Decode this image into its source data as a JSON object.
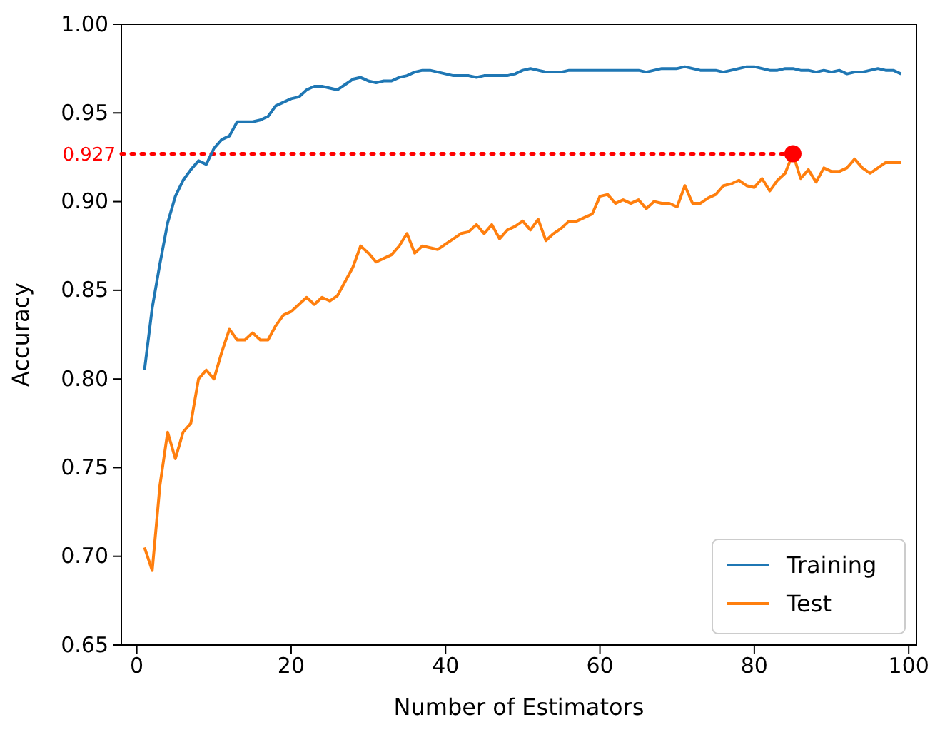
{
  "chart_data": {
    "type": "line",
    "xlabel": "Number of Estimators",
    "ylabel": "Accuracy",
    "x": [
      1,
      2,
      3,
      4,
      5,
      6,
      7,
      8,
      9,
      10,
      11,
      12,
      13,
      14,
      15,
      16,
      17,
      18,
      19,
      20,
      21,
      22,
      23,
      24,
      25,
      26,
      27,
      28,
      29,
      30,
      31,
      32,
      33,
      34,
      35,
      36,
      37,
      38,
      39,
      40,
      41,
      42,
      43,
      44,
      45,
      46,
      47,
      48,
      49,
      50,
      51,
      52,
      53,
      54,
      55,
      56,
      57,
      58,
      59,
      60,
      61,
      62,
      63,
      64,
      65,
      66,
      67,
      68,
      69,
      70,
      71,
      72,
      73,
      74,
      75,
      76,
      77,
      78,
      79,
      80,
      81,
      82,
      83,
      84,
      85,
      86,
      87,
      88,
      89,
      90,
      91,
      92,
      93,
      94,
      95,
      96,
      97,
      98,
      99
    ],
    "series": [
      {
        "name": "Training",
        "color": "#1f77b4",
        "values": [
          0.805,
          0.84,
          0.865,
          0.888,
          0.903,
          0.912,
          0.918,
          0.923,
          0.921,
          0.93,
          0.935,
          0.937,
          0.945,
          0.945,
          0.945,
          0.946,
          0.948,
          0.954,
          0.956,
          0.958,
          0.959,
          0.963,
          0.965,
          0.965,
          0.964,
          0.963,
          0.966,
          0.969,
          0.97,
          0.968,
          0.967,
          0.968,
          0.968,
          0.97,
          0.971,
          0.973,
          0.974,
          0.974,
          0.973,
          0.972,
          0.971,
          0.971,
          0.971,
          0.97,
          0.971,
          0.971,
          0.971,
          0.971,
          0.972,
          0.974,
          0.975,
          0.974,
          0.973,
          0.973,
          0.973,
          0.974,
          0.974,
          0.974,
          0.974,
          0.974,
          0.974,
          0.974,
          0.974,
          0.974,
          0.974,
          0.973,
          0.974,
          0.975,
          0.975,
          0.975,
          0.976,
          0.975,
          0.974,
          0.974,
          0.974,
          0.973,
          0.974,
          0.975,
          0.976,
          0.976,
          0.975,
          0.974,
          0.974,
          0.975,
          0.975,
          0.974,
          0.974,
          0.973,
          0.974,
          0.973,
          0.974,
          0.972,
          0.973,
          0.973,
          0.974,
          0.975,
          0.974,
          0.974,
          0.972
        ]
      },
      {
        "name": "Test",
        "color": "#ff7f0e",
        "values": [
          0.705,
          0.692,
          0.74,
          0.77,
          0.755,
          0.77,
          0.775,
          0.8,
          0.805,
          0.8,
          0.815,
          0.828,
          0.822,
          0.822,
          0.826,
          0.822,
          0.822,
          0.83,
          0.836,
          0.838,
          0.842,
          0.846,
          0.842,
          0.846,
          0.844,
          0.847,
          0.855,
          0.863,
          0.875,
          0.871,
          0.866,
          0.868,
          0.87,
          0.875,
          0.882,
          0.871,
          0.875,
          0.874,
          0.873,
          0.876,
          0.879,
          0.882,
          0.883,
          0.887,
          0.882,
          0.887,
          0.879,
          0.884,
          0.886,
          0.889,
          0.884,
          0.89,
          0.878,
          0.882,
          0.885,
          0.889,
          0.889,
          0.891,
          0.893,
          0.903,
          0.904,
          0.899,
          0.901,
          0.899,
          0.901,
          0.896,
          0.9,
          0.899,
          0.899,
          0.897,
          0.909,
          0.899,
          0.899,
          0.902,
          0.904,
          0.909,
          0.91,
          0.912,
          0.909,
          0.908,
          0.913,
          0.906,
          0.912,
          0.916,
          0.927,
          0.913,
          0.918,
          0.911,
          0.919,
          0.917,
          0.917,
          0.919,
          0.924,
          0.919,
          0.916,
          0.919,
          0.922,
          0.922,
          0.922
        ]
      },
      {
        "type": "scatter",
        "color": "#ff0000",
        "x": [
          85
        ],
        "values": [
          0.927
        ],
        "marker": "circle"
      }
    ],
    "ref_lines": [
      {
        "axis": "y",
        "value": 0.927,
        "label": "0.927",
        "color": "#ff0000",
        "line_style": "dotted"
      }
    ],
    "xlim": [
      -2,
      101
    ],
    "xticks": [
      0,
      20,
      40,
      60,
      80,
      100
    ],
    "ylim": [
      0.65,
      1.0
    ],
    "yticks": [
      {
        "value": 0.65,
        "label": "0.65"
      },
      {
        "value": 0.7,
        "label": "0.70"
      },
      {
        "value": 0.75,
        "label": "0.75"
      },
      {
        "value": 0.8,
        "label": "0.80"
      },
      {
        "value": 0.85,
        "label": "0.85"
      },
      {
        "value": 0.9,
        "label": "0.90"
      },
      {
        "value": 0.95,
        "label": "0.95"
      },
      {
        "value": 1.0,
        "label": "1.00"
      }
    ],
    "legend": "bottom right",
    "grid": false
  }
}
